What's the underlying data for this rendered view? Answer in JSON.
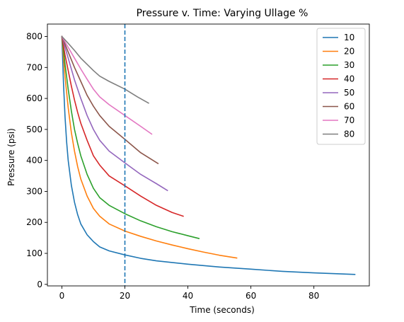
{
  "chart_data": {
    "type": "line",
    "title": "Pressure v. Time: Varying Ullage %",
    "xlabel": "Time (seconds)",
    "ylabel": "Pressure (psi)",
    "xlim": [
      -4.6,
      97.6
    ],
    "ylim": [
      -5,
      840
    ],
    "xticks": [
      0,
      20,
      40,
      60,
      80
    ],
    "yticks": [
      0,
      100,
      200,
      300,
      400,
      500,
      600,
      700,
      800
    ],
    "grid": false,
    "legend_position": "top-right",
    "vline": {
      "x": 20,
      "color": "#1f77b4",
      "style": "dashed"
    },
    "series": [
      {
        "name": "10",
        "color": "#1f77b4",
        "points": [
          [
            0,
            800
          ],
          [
            0.5,
            650
          ],
          [
            1,
            540
          ],
          [
            1.5,
            460
          ],
          [
            2,
            400
          ],
          [
            3,
            320
          ],
          [
            4,
            265
          ],
          [
            5,
            225
          ],
          [
            6,
            195
          ],
          [
            8,
            160
          ],
          [
            10,
            138
          ],
          [
            12,
            121
          ],
          [
            15,
            108
          ],
          [
            20,
            95
          ],
          [
            25,
            84
          ],
          [
            30,
            76
          ],
          [
            40,
            65
          ],
          [
            50,
            56
          ],
          [
            60,
            49
          ],
          [
            70,
            42
          ],
          [
            80,
            37
          ],
          [
            93,
            32
          ]
        ]
      },
      {
        "name": "20",
        "color": "#ff7f0e",
        "points": [
          [
            0,
            800
          ],
          [
            1,
            670
          ],
          [
            2,
            570
          ],
          [
            3,
            490
          ],
          [
            4,
            430
          ],
          [
            5,
            380
          ],
          [
            6,
            340
          ],
          [
            8,
            285
          ],
          [
            10,
            245
          ],
          [
            12,
            220
          ],
          [
            15,
            195
          ],
          [
            20,
            172
          ],
          [
            25,
            155
          ],
          [
            30,
            140
          ],
          [
            35,
            127
          ],
          [
            40,
            115
          ],
          [
            45,
            104
          ],
          [
            50,
            94
          ],
          [
            55.5,
            85
          ]
        ]
      },
      {
        "name": "30",
        "color": "#2ca02c",
        "points": [
          [
            0,
            800
          ],
          [
            1,
            710
          ],
          [
            2,
            630
          ],
          [
            3,
            560
          ],
          [
            4,
            500
          ],
          [
            5,
            455
          ],
          [
            6,
            415
          ],
          [
            8,
            355
          ],
          [
            10,
            310
          ],
          [
            12,
            280
          ],
          [
            15,
            255
          ],
          [
            20,
            228
          ],
          [
            25,
            205
          ],
          [
            30,
            186
          ],
          [
            35,
            170
          ],
          [
            40,
            157
          ],
          [
            43.5,
            148
          ]
        ]
      },
      {
        "name": "40",
        "color": "#d62728",
        "points": [
          [
            0,
            800
          ],
          [
            1,
            740
          ],
          [
            2,
            690
          ],
          [
            3,
            640
          ],
          [
            4,
            595
          ],
          [
            5,
            555
          ],
          [
            6,
            520
          ],
          [
            8,
            465
          ],
          [
            10,
            415
          ],
          [
            12,
            385
          ],
          [
            15,
            350
          ],
          [
            20,
            318
          ],
          [
            25,
            285
          ],
          [
            30,
            255
          ],
          [
            35,
            232
          ],
          [
            38.5,
            220
          ]
        ]
      },
      {
        "name": "50",
        "color": "#9467bd",
        "points": [
          [
            0,
            800
          ],
          [
            2,
            730
          ],
          [
            4,
            660
          ],
          [
            6,
            600
          ],
          [
            8,
            545
          ],
          [
            10,
            500
          ],
          [
            12,
            465
          ],
          [
            15,
            430
          ],
          [
            20,
            392
          ],
          [
            25,
            355
          ],
          [
            30,
            325
          ],
          [
            33.5,
            303
          ]
        ]
      },
      {
        "name": "60",
        "color": "#8c564b",
        "points": [
          [
            0,
            800
          ],
          [
            2,
            750
          ],
          [
            4,
            700
          ],
          [
            6,
            655
          ],
          [
            8,
            610
          ],
          [
            10,
            575
          ],
          [
            12,
            545
          ],
          [
            15,
            510
          ],
          [
            20,
            468
          ],
          [
            25,
            425
          ],
          [
            30.5,
            390
          ]
        ]
      },
      {
        "name": "70",
        "color": "#e377c2",
        "points": [
          [
            0,
            800
          ],
          [
            2,
            765
          ],
          [
            4,
            730
          ],
          [
            6,
            695
          ],
          [
            8,
            662
          ],
          [
            10,
            630
          ],
          [
            12,
            605
          ],
          [
            15,
            580
          ],
          [
            20,
            545
          ],
          [
            25,
            510
          ],
          [
            28.5,
            485
          ]
        ]
      },
      {
        "name": "80",
        "color": "#7f7f7f",
        "points": [
          [
            0,
            800
          ],
          [
            2,
            778
          ],
          [
            4,
            755
          ],
          [
            6,
            730
          ],
          [
            8,
            710
          ],
          [
            10,
            690
          ],
          [
            12,
            672
          ],
          [
            15,
            655
          ],
          [
            20,
            630
          ],
          [
            24,
            605
          ],
          [
            27.5,
            585
          ]
        ]
      }
    ]
  }
}
